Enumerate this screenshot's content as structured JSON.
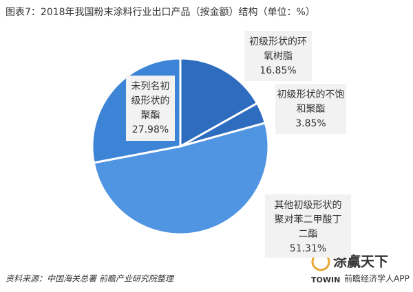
{
  "chart_data": {
    "type": "pie",
    "title": "图表7：2018年我国粉末涂料行业出口产品（按金额）结构（单位：%）",
    "categories": [
      "初级形状的环氧树脂",
      "初级形状的不饱和聚酯",
      "其他初级形状的聚对苯二甲酸丁二酯",
      "未列名初级形状的聚酯"
    ],
    "values": [
      16.85,
      3.85,
      51.31,
      27.98
    ],
    "value_labels": [
      "16.85%",
      "3.85%",
      "51.31%",
      "27.98%"
    ],
    "colors": [
      "#2e6cc0",
      "#2e6cc0",
      "#4f95e2",
      "#3c85d6"
    ],
    "source": "资料来源：中国海关总署 前瞻产业研究院整理",
    "logo": {
      "brand": "涂赢天下",
      "brand_en": "TOWIN",
      "app": "前瞻经济学人APP"
    }
  }
}
